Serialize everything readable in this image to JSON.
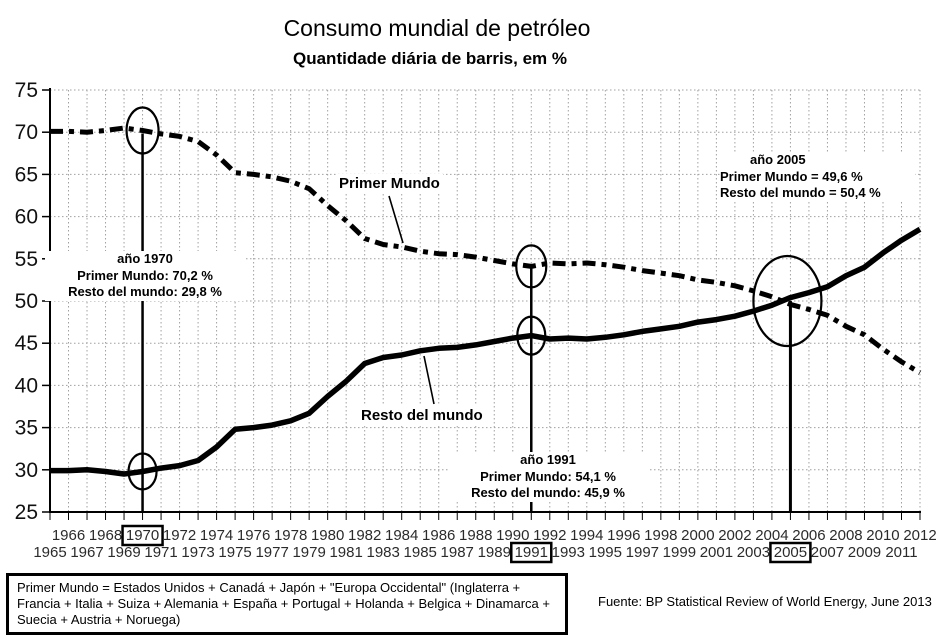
{
  "title": "Consumo mundial de petróleo",
  "subtitle": "Quantidade diária de barris, em %",
  "annotations": {
    "y1970": {
      "title": "año 1970",
      "primer": "Primer Mundo: 70,2 %",
      "resto": "Resto del mundo: 29,8 %"
    },
    "y1991": {
      "title": "año 1991",
      "primer": "Primer Mundo: 54,1 %",
      "resto": "Resto del mundo: 45,9 %"
    },
    "y2005": {
      "title": "año 2005",
      "primer": "Primer Mundo = 49,6 %",
      "resto": "Resto del mundo = 50,4 %"
    }
  },
  "footer": {
    "lines": [
      "Primer Mundo = Estados Unidos + Canadá + Japón + \"Europa Occidental\" (Inglaterra +",
      "Francia + Italia + Suiza + Alemania + España + Portugal + Holanda + Belgica + Dinamarca +",
      "Suecia + Austria + Noruega)"
    ],
    "source": "Fuente: BP Statistical Review of World Energy, June 2013"
  },
  "chart_data": {
    "type": "line",
    "title": "Consumo mundial de petróleo",
    "subtitle": "Quantidade diária de barris, em %",
    "xlabel": "",
    "ylabel": "",
    "ylim": [
      25,
      75
    ],
    "yticks": [
      25,
      30,
      35,
      40,
      45,
      50,
      55,
      60,
      65,
      70,
      75
    ],
    "grid": true,
    "x": [
      1965,
      1966,
      1967,
      1968,
      1969,
      1970,
      1971,
      1972,
      1973,
      1974,
      1975,
      1976,
      1977,
      1978,
      1979,
      1980,
      1981,
      1982,
      1983,
      1984,
      1985,
      1986,
      1987,
      1988,
      1989,
      1990,
      1991,
      1992,
      1993,
      1994,
      1995,
      1996,
      1997,
      1998,
      1999,
      2000,
      2001,
      2002,
      2003,
      2004,
      2005,
      2006,
      2007,
      2008,
      2009,
      2010,
      2011,
      2012
    ],
    "series": [
      {
        "name": "Primer Mundo",
        "style": "dashed",
        "values": [
          70.1,
          70.1,
          70.0,
          70.2,
          70.5,
          70.2,
          69.8,
          69.5,
          68.9,
          67.3,
          65.2,
          65.0,
          64.7,
          64.2,
          63.3,
          61.3,
          59.5,
          57.4,
          56.7,
          56.4,
          55.9,
          55.6,
          55.5,
          55.2,
          54.8,
          54.4,
          54.1,
          54.5,
          54.4,
          54.5,
          54.3,
          54.0,
          53.6,
          53.3,
          53.0,
          52.5,
          52.2,
          51.8,
          51.2,
          50.5,
          49.6,
          49.0,
          48.3,
          47.0,
          46.0,
          44.3,
          42.8,
          41.5
        ]
      },
      {
        "name": "Resto del mundo",
        "style": "solid",
        "values": [
          29.9,
          29.9,
          30.0,
          29.8,
          29.5,
          29.8,
          30.2,
          30.5,
          31.1,
          32.7,
          34.8,
          35.0,
          35.3,
          35.8,
          36.7,
          38.7,
          40.5,
          42.6,
          43.3,
          43.6,
          44.1,
          44.4,
          44.5,
          44.8,
          45.2,
          45.6,
          45.9,
          45.5,
          45.6,
          45.5,
          45.7,
          46.0,
          46.4,
          46.7,
          47.0,
          47.5,
          47.8,
          48.2,
          48.8,
          49.5,
          50.4,
          51.0,
          51.7,
          53.0,
          54.0,
          55.7,
          57.2,
          58.5
        ]
      }
    ],
    "highlight_years": [
      1970,
      1991,
      2005
    ],
    "key_points": {
      "1970": {
        "Primer Mundo": 70.2,
        "Resto del mundo": 29.8
      },
      "1991": {
        "Primer Mundo": 54.1,
        "Resto del mundo": 45.9
      },
      "2005": {
        "Primer Mundo": 49.6,
        "Resto del mundo": 50.4
      }
    },
    "colors": {
      "line": "#000000",
      "grid": "#a0a0a0",
      "text": "#222222"
    }
  }
}
